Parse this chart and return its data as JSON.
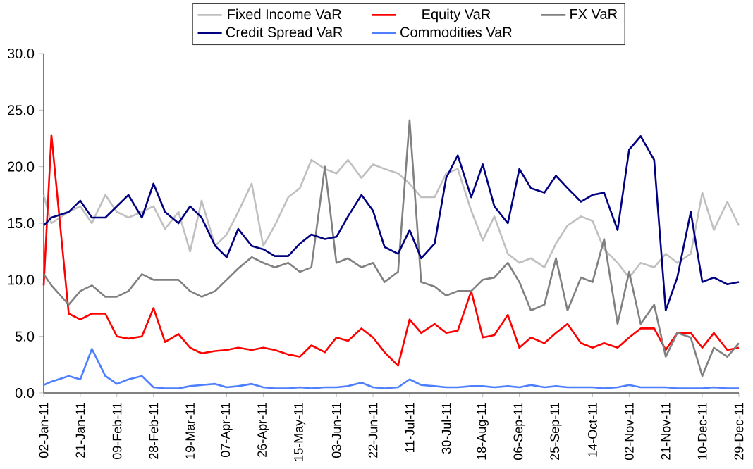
{
  "chart_data": {
    "type": "line",
    "x": [
      "2011-01-02",
      "2011-01-06",
      "2011-01-15",
      "2011-01-21",
      "2011-01-27",
      "2011-02-03",
      "2011-02-09",
      "2011-02-15",
      "2011-02-22",
      "2011-02-28",
      "2011-03-06",
      "2011-03-13",
      "2011-03-19",
      "2011-03-25",
      "2011-04-01",
      "2011-04-07",
      "2011-04-13",
      "2011-04-20",
      "2011-04-26",
      "2011-05-02",
      "2011-05-09",
      "2011-05-15",
      "2011-05-21",
      "2011-05-28",
      "2011-06-03",
      "2011-06-09",
      "2011-06-16",
      "2011-06-22",
      "2011-06-28",
      "2011-07-05",
      "2011-07-11",
      "2011-07-17",
      "2011-07-24",
      "2011-07-30",
      "2011-08-05",
      "2011-08-12",
      "2011-08-18",
      "2011-08-24",
      "2011-08-31",
      "2011-09-06",
      "2011-09-12",
      "2011-09-19",
      "2011-09-25",
      "2011-10-01",
      "2011-10-08",
      "2011-10-14",
      "2011-10-20",
      "2011-10-27",
      "2011-11-02",
      "2011-11-08",
      "2011-11-15",
      "2011-11-21",
      "2011-11-27",
      "2011-12-04",
      "2011-12-10",
      "2011-12-16",
      "2011-12-23",
      "2011-12-29"
    ],
    "series": [
      {
        "name": "Fixed Income VaR",
        "color": "#c0c0c0",
        "values": [
          17.5,
          15,
          16,
          16.5,
          15,
          17.5,
          16,
          15.5,
          16,
          16.5,
          14.5,
          16,
          12.5,
          17,
          13,
          14,
          16,
          18.5,
          13,
          14.8,
          17.3,
          18.1,
          20.6,
          19.8,
          19.4,
          20.6,
          19,
          20.2,
          19.8,
          19.4,
          18.5,
          17.3,
          17.3,
          19.4,
          19.8,
          16.1,
          13.5,
          15.6,
          12.3,
          11.5,
          11.9,
          11.1,
          13.2,
          14.8,
          15.6,
          15.2,
          12.7,
          11.5,
          10.2,
          11.5,
          11.1,
          12.3,
          11.5,
          12.3,
          17.7,
          14.4,
          16.9,
          14.8
        ]
      },
      {
        "name": "Equity VaR",
        "color": "#ff0000",
        "values": [
          9.5,
          22.8,
          7,
          6.5,
          7,
          7,
          5,
          4.8,
          5,
          7.5,
          4.5,
          5.2,
          4,
          3.5,
          3.7,
          3.8,
          4,
          3.8,
          4,
          3.8,
          3.4,
          3.2,
          4.2,
          3.6,
          4.9,
          4.6,
          5.7,
          4.9,
          3.6,
          2.4,
          6.5,
          5.3,
          6.1,
          5.3,
          5.5,
          9,
          4.9,
          5.1,
          6.9,
          4,
          4.9,
          4.4,
          5.3,
          6.1,
          4.4,
          4,
          4.4,
          4,
          4.9,
          5.7,
          5.7,
          3.8,
          5.3,
          5.3,
          4,
          5.3,
          3.8,
          4
        ]
      },
      {
        "name": "FX VaR",
        "color": "#808080",
        "values": [
          10.5,
          9.5,
          7.8,
          9,
          9.5,
          8.5,
          8.5,
          9,
          10.5,
          10,
          10,
          10,
          9,
          8.5,
          9,
          10,
          11,
          12,
          11.5,
          11.1,
          11.5,
          10.7,
          11.1,
          20,
          11.5,
          11.9,
          11.1,
          11.5,
          9.8,
          10.7,
          24.1,
          9.8,
          9.4,
          8.6,
          9,
          9,
          10,
          10.2,
          11.5,
          9.8,
          7.3,
          7.8,
          11.9,
          7.3,
          10.2,
          9.8,
          13.6,
          6.1,
          10.7,
          6.1,
          7.8,
          3.2,
          5.3,
          4.9,
          1.5,
          4,
          3.2,
          4.4
        ]
      },
      {
        "name": "Credit Spread VaR",
        "color": "#000080",
        "values": [
          14.8,
          15.5,
          16,
          17,
          15.5,
          15.5,
          16.5,
          17.5,
          15.5,
          18.5,
          16,
          15,
          16.5,
          15.5,
          13,
          12,
          14.5,
          13,
          12.7,
          12.1,
          12.1,
          13.2,
          14,
          13.6,
          13.8,
          15.6,
          17.5,
          16.1,
          12.9,
          12.3,
          14.4,
          11.9,
          13.2,
          19,
          21,
          17.3,
          20.2,
          16.5,
          15,
          19.8,
          18.1,
          17.7,
          19.2,
          18.1,
          16.9,
          17.5,
          17.7,
          14.4,
          21.5,
          22.7,
          20.6,
          7.3,
          10.2,
          16,
          9.8,
          10.2,
          9.6,
          9.8
        ]
      },
      {
        "name": "Commodities VaR",
        "color": "#4d7fff",
        "values": [
          0.7,
          1,
          1.5,
          1.2,
          3.9,
          1.5,
          0.8,
          1.2,
          1.5,
          0.5,
          0.4,
          0.4,
          0.6,
          0.7,
          0.8,
          0.5,
          0.6,
          0.8,
          0.5,
          0.4,
          0.4,
          0.5,
          0.4,
          0.5,
          0.5,
          0.6,
          0.9,
          0.5,
          0.4,
          0.5,
          1.2,
          0.7,
          0.6,
          0.5,
          0.5,
          0.6,
          0.6,
          0.5,
          0.6,
          0.5,
          0.7,
          0.5,
          0.6,
          0.5,
          0.5,
          0.5,
          0.4,
          0.5,
          0.7,
          0.5,
          0.5,
          0.5,
          0.4,
          0.4,
          0.4,
          0.5,
          0.4,
          0.4
        ]
      }
    ],
    "xlim": [
      "2011-01-02",
      "2011-12-29"
    ],
    "xticks": [
      {
        "value": "2011-01-02",
        "label": "02-Jan-11"
      },
      {
        "value": "2011-01-21",
        "label": "21-Jan-11"
      },
      {
        "value": "2011-02-09",
        "label": "09-Feb-11"
      },
      {
        "value": "2011-02-28",
        "label": "28-Feb-11"
      },
      {
        "value": "2011-03-19",
        "label": "19-Mar-11"
      },
      {
        "value": "2011-04-07",
        "label": "07-Apr-11"
      },
      {
        "value": "2011-04-26",
        "label": "26-Apr-11"
      },
      {
        "value": "2011-05-15",
        "label": "15-May-11"
      },
      {
        "value": "2011-06-03",
        "label": "03-Jun-11"
      },
      {
        "value": "2011-06-22",
        "label": "22-Jun-11"
      },
      {
        "value": "2011-07-11",
        "label": "11-Jul-11"
      },
      {
        "value": "2011-07-30",
        "label": "30-Jul-11"
      },
      {
        "value": "2011-08-18",
        "label": "18-Aug-11"
      },
      {
        "value": "2011-09-06",
        "label": "06-Sep-11"
      },
      {
        "value": "2011-09-25",
        "label": "25-Sep-11"
      },
      {
        "value": "2011-10-14",
        "label": "14-Oct-11"
      },
      {
        "value": "2011-11-02",
        "label": "02-Nov-11"
      },
      {
        "value": "2011-11-21",
        "label": "21-Nov-11"
      },
      {
        "value": "2011-12-10",
        "label": "10-Dec-11"
      },
      {
        "value": "2011-12-29",
        "label": "29-Dec-11"
      }
    ],
    "ylim": [
      0,
      30
    ],
    "yticks": [
      {
        "value": 0,
        "label": "0.0"
      },
      {
        "value": 5,
        "label": "5.0"
      },
      {
        "value": 10,
        "label": "10.0"
      },
      {
        "value": 15,
        "label": "15.0"
      },
      {
        "value": 20,
        "label": "20.0"
      },
      {
        "value": 25,
        "label": "25.0"
      },
      {
        "value": 30,
        "label": "30.0"
      }
    ],
    "legend": "top",
    "line_style": "solid"
  }
}
